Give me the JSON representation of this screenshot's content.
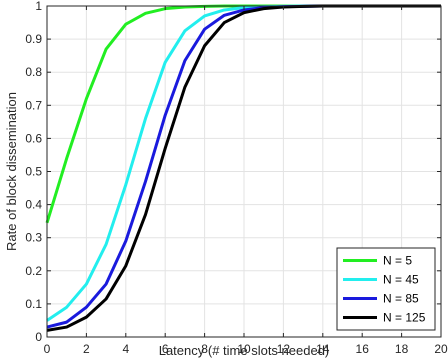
{
  "chart_data": {
    "type": "line",
    "xlabel": "Latency (# time slots needed)",
    "ylabel": "Rate of block dissemination",
    "xlim": [
      0,
      20
    ],
    "ylim": [
      0,
      1
    ],
    "xticks": [
      0,
      2,
      4,
      6,
      8,
      10,
      12,
      14,
      16,
      18,
      20
    ],
    "yticks": [
      0,
      0.1,
      0.2,
      0.3,
      0.4,
      0.5,
      0.6,
      0.7,
      0.8,
      0.9,
      1
    ],
    "xtick_labels": [
      "0",
      "2",
      "4",
      "6",
      "8",
      "10",
      "12",
      "14",
      "16",
      "18",
      "20"
    ],
    "ytick_labels": [
      "0",
      "0.1",
      "0.2",
      "0.3",
      "0.4",
      "0.5",
      "0.6",
      "0.7",
      "0.8",
      "0.9",
      "1"
    ],
    "grid": true,
    "legend_position": "bottom-right",
    "x": [
      0,
      1,
      2,
      3,
      4,
      5,
      6,
      7,
      8,
      9,
      10,
      11,
      12,
      13,
      14,
      15,
      16,
      17,
      18,
      19,
      20
    ],
    "series": [
      {
        "name": "N = 5",
        "color": "#22ee22",
        "values": [
          0.345,
          0.54,
          0.72,
          0.87,
          0.945,
          0.978,
          0.992,
          0.997,
          0.999,
          1.0,
          1.0,
          1.0,
          1.0,
          1.0,
          1.0,
          1.0,
          1.0,
          1.0,
          1.0,
          1.0,
          1.0
        ]
      },
      {
        "name": "N = 45",
        "color": "#22eeee",
        "values": [
          0.05,
          0.09,
          0.16,
          0.28,
          0.46,
          0.66,
          0.83,
          0.925,
          0.97,
          0.988,
          0.995,
          0.998,
          0.999,
          1.0,
          1.0,
          1.0,
          1.0,
          1.0,
          1.0,
          1.0,
          1.0
        ]
      },
      {
        "name": "N = 85",
        "color": "#1a1add",
        "values": [
          0.03,
          0.045,
          0.09,
          0.16,
          0.29,
          0.47,
          0.67,
          0.835,
          0.93,
          0.972,
          0.988,
          0.995,
          0.998,
          0.999,
          1.0,
          1.0,
          1.0,
          1.0,
          1.0,
          1.0,
          1.0
        ]
      },
      {
        "name": "N = 125",
        "color": "#000000",
        "values": [
          0.02,
          0.03,
          0.06,
          0.115,
          0.215,
          0.37,
          0.57,
          0.755,
          0.88,
          0.95,
          0.98,
          0.992,
          0.997,
          0.999,
          1.0,
          1.0,
          1.0,
          1.0,
          1.0,
          1.0,
          1.0
        ]
      }
    ]
  }
}
